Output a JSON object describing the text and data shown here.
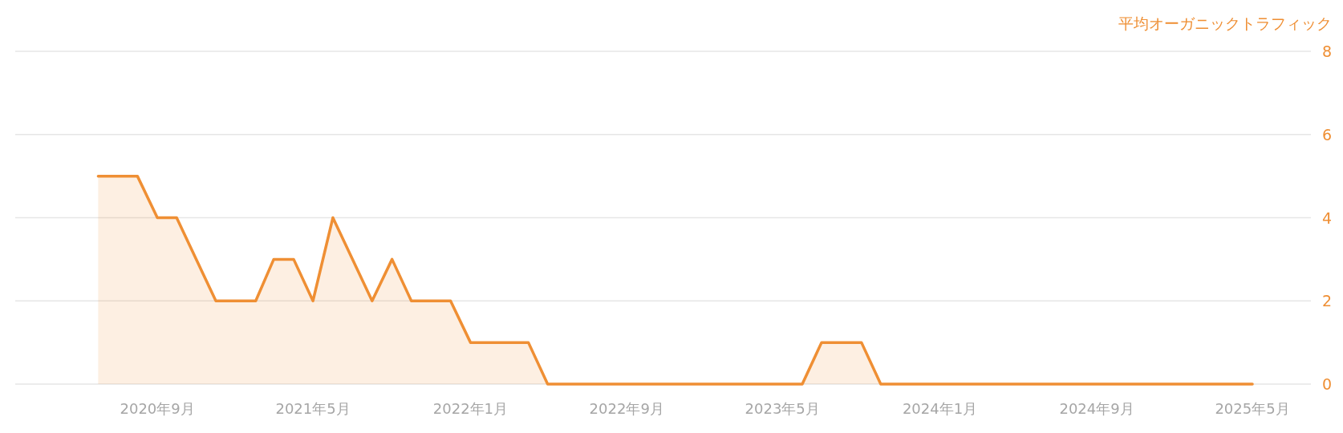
{
  "chart_data": {
    "type": "area",
    "ylabel": "平均オーガニックトラフィック",
    "x": [
      "2020-06",
      "2020-08",
      "2020-09",
      "2020-10",
      "2020-12",
      "2021-02",
      "2021-03",
      "2021-04",
      "2021-05",
      "2021-06",
      "2021-08",
      "2021-09",
      "2021-10",
      "2021-12",
      "2022-01",
      "2022-04",
      "2022-05",
      "2023-06",
      "2023-07",
      "2023-09",
      "2023-10",
      "2025-05"
    ],
    "values": [
      5,
      5,
      4,
      4,
      2,
      2,
      3,
      3,
      2,
      4,
      2,
      3,
      2,
      2,
      1,
      1,
      0,
      0,
      1,
      1,
      0,
      0
    ],
    "color": "#ef8f34",
    "xlim": [
      "2020-01-24",
      "2025-07-31"
    ],
    "xticks": [
      {
        "value": "2020-09",
        "label": "2020年9月"
      },
      {
        "value": "2021-05",
        "label": "2021年5月"
      },
      {
        "value": "2022-01",
        "label": "2022年1月"
      },
      {
        "value": "2022-09",
        "label": "2022年9月"
      },
      {
        "value": "2023-05",
        "label": "2023年5月"
      },
      {
        "value": "2024-01",
        "label": "2024年1月"
      },
      {
        "value": "2024-09",
        "label": "2024年9月"
      },
      {
        "value": "2025-05",
        "label": "2025年5月"
      }
    ],
    "ylim": [
      0,
      8
    ],
    "yticks": [
      0,
      2,
      4,
      6,
      8
    ],
    "grid": "y"
  }
}
